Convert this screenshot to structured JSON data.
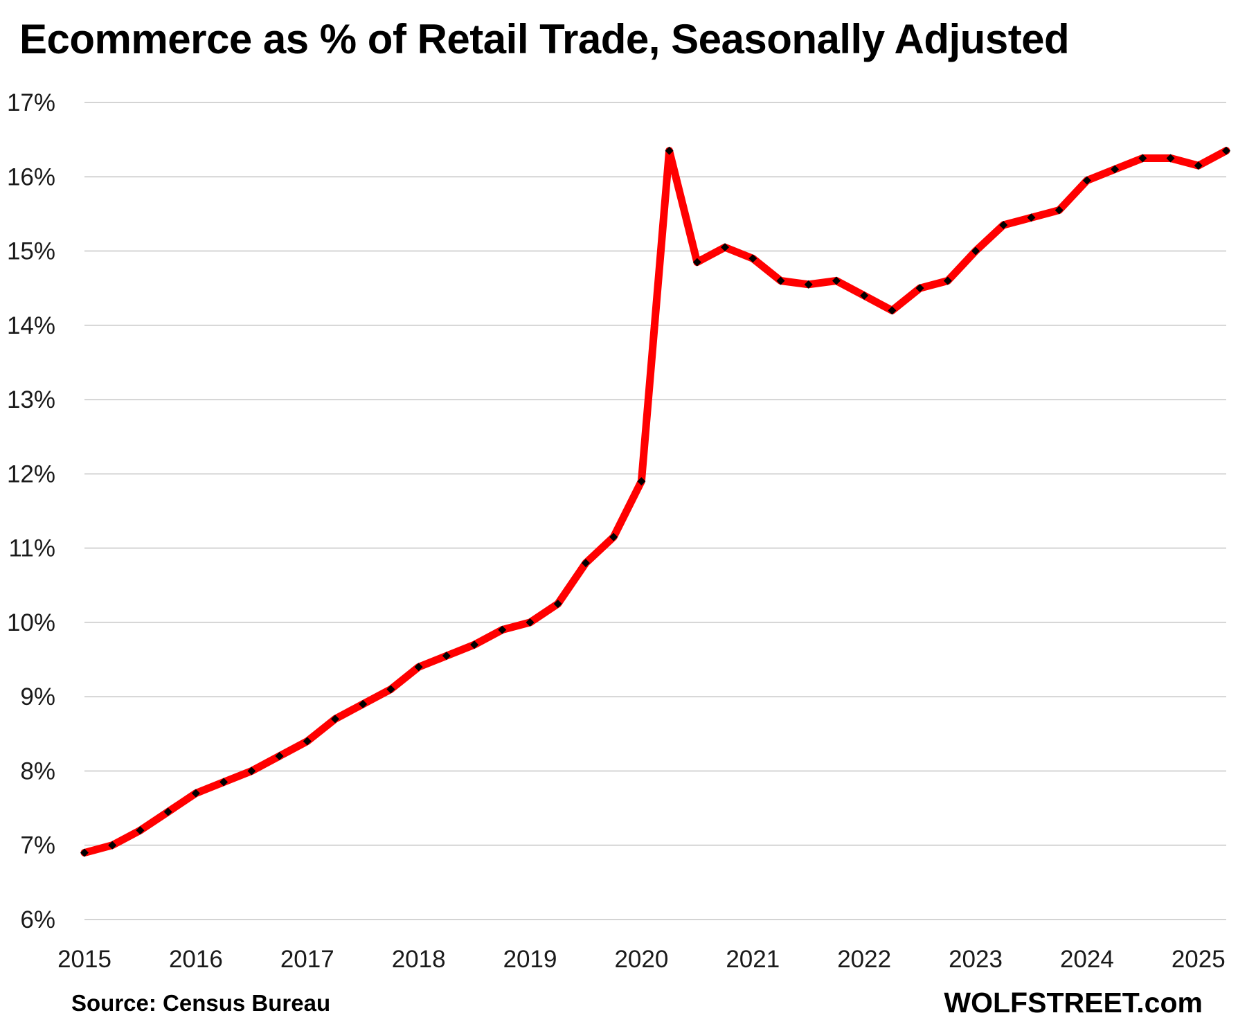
{
  "chart_data": {
    "type": "line",
    "title": "Ecommerce as % of Retail Trade, Seasonally Adjusted",
    "xlabel": "",
    "ylabel": "",
    "ylim": [
      6,
      17
    ],
    "y_ticks": [
      "6%",
      "7%",
      "8%",
      "9%",
      "10%",
      "11%",
      "12%",
      "13%",
      "14%",
      "15%",
      "16%",
      "17%"
    ],
    "x_ticks": [
      "2015",
      "2016",
      "2017",
      "2018",
      "2019",
      "2020",
      "2021",
      "2022",
      "2023",
      "2024",
      "2025"
    ],
    "x_range": [
      2015.0,
      2025.25
    ],
    "grid": true,
    "line_color": "#ff0000",
    "marker_color": "#000000",
    "series": [
      {
        "x": [
          "2015 Q1",
          "2015 Q2",
          "2015 Q3",
          "2015 Q4",
          "2016 Q1",
          "2016 Q2",
          "2016 Q3",
          "2016 Q4",
          "2017 Q1",
          "2017 Q2",
          "2017 Q3",
          "2017 Q4",
          "2018 Q1",
          "2018 Q2",
          "2018 Q3",
          "2018 Q4",
          "2019 Q1",
          "2019 Q2",
          "2019 Q3",
          "2019 Q4",
          "2020 Q1",
          "2020 Q2",
          "2020 Q3",
          "2020 Q4",
          "2021 Q1",
          "2021 Q2",
          "2021 Q3",
          "2021 Q4",
          "2022 Q1",
          "2022 Q2",
          "2022 Q3",
          "2022 Q4",
          "2023 Q1",
          "2023 Q2",
          "2023 Q3",
          "2023 Q4",
          "2024 Q1",
          "2024 Q2",
          "2024 Q3",
          "2024 Q4",
          "2025 Q1",
          "2025 Q2"
        ],
        "values": [
          6.9,
          7.0,
          7.2,
          7.45,
          7.7,
          7.85,
          8.0,
          8.2,
          8.4,
          8.7,
          8.9,
          9.1,
          9.4,
          9.55,
          9.7,
          9.9,
          10.0,
          10.25,
          10.8,
          11.15,
          11.9,
          16.35,
          14.85,
          15.05,
          14.9,
          14.6,
          14.55,
          14.6,
          14.4,
          14.2,
          14.5,
          14.6,
          15.0,
          15.35,
          15.45,
          15.55,
          15.95,
          16.1,
          16.25,
          16.25,
          16.15,
          16.35
        ]
      }
    ]
  },
  "footer": {
    "source": "Source: Census Bureau",
    "brand": "WOLFSTREET.com"
  }
}
